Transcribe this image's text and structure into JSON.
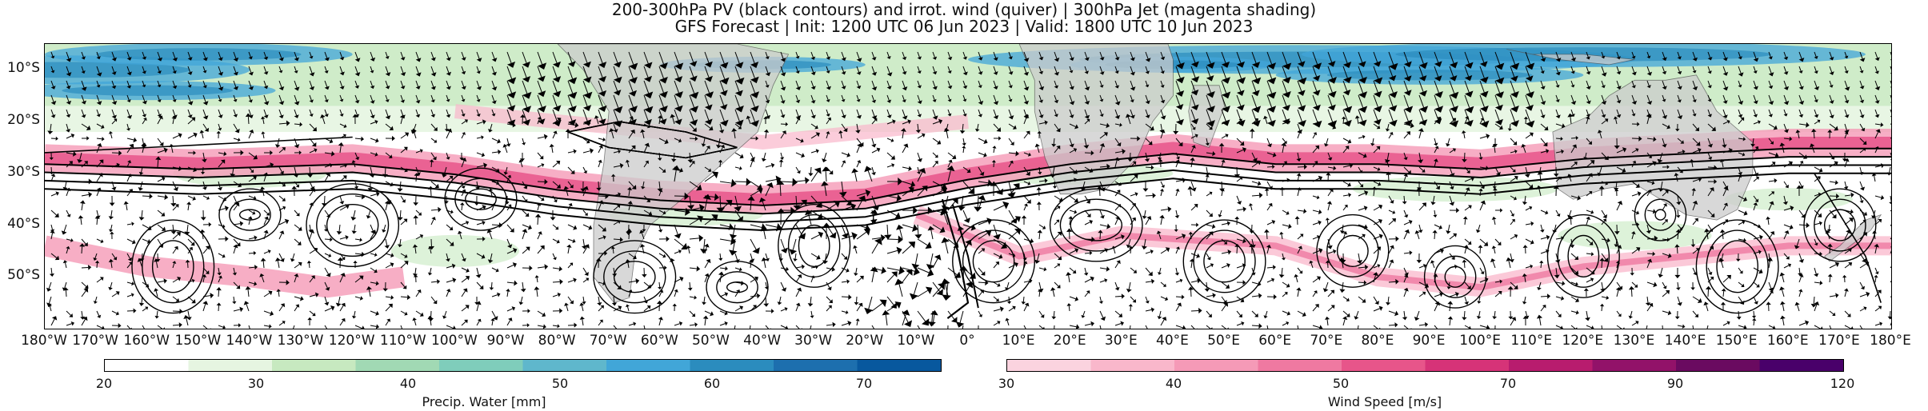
{
  "title": {
    "line1": "200-300hPa PV (black contours) and irrot. wind (quiver) | 300hPa Jet (magenta shading)",
    "line2": "GFS Forecast | Init: 1200 UTC 06 Jun 2023 | Valid: 1800 UTC 10 Jun 2023"
  },
  "map": {
    "projection": "PlateCarree",
    "extent_lon": [
      -180,
      180
    ],
    "extent_lat": [
      -60,
      -5
    ],
    "y_ticks": [
      "10°S",
      "20°S",
      "30°S",
      "40°S",
      "50°S"
    ],
    "y_tick_values": [
      -10,
      -20,
      -30,
      -40,
      -50
    ],
    "x_ticks": [
      "180°W",
      "170°W",
      "160°W",
      "150°W",
      "140°W",
      "130°W",
      "120°W",
      "110°W",
      "100°W",
      "90°W",
      "80°W",
      "70°W",
      "60°W",
      "50°W",
      "40°W",
      "30°W",
      "20°W",
      "10°W",
      "0°",
      "10°E",
      "20°E",
      "30°E",
      "40°E",
      "50°E",
      "60°E",
      "70°E",
      "80°E",
      "90°E",
      "100°E",
      "110°E",
      "120°E",
      "130°E",
      "140°E",
      "150°E",
      "160°E",
      "170°E",
      "180°E"
    ],
    "x_tick_values": [
      -180,
      -170,
      -160,
      -150,
      -140,
      -130,
      -120,
      -110,
      -100,
      -90,
      -80,
      -70,
      -60,
      -50,
      -40,
      -30,
      -20,
      -10,
      0,
      10,
      20,
      30,
      40,
      50,
      60,
      70,
      80,
      90,
      100,
      110,
      120,
      130,
      140,
      150,
      160,
      170,
      180
    ],
    "land_color": "#cccccc",
    "contour_color": "#000000"
  },
  "colorbars": [
    {
      "label": "Precip. Water [mm]",
      "ticks": [
        "20",
        "30",
        "40",
        "50",
        "60",
        "70"
      ],
      "tick_values": [
        20,
        30,
        40,
        50,
        60,
        70
      ],
      "range": [
        20,
        75
      ],
      "colors": [
        "#ffffff",
        "#e6f5e1",
        "#c7e9c0",
        "#a1d9b4",
        "#7fcdbb",
        "#5fb7cc",
        "#41a6d8",
        "#2b8cbe",
        "#1d6fae",
        "#08589e"
      ]
    },
    {
      "label": "Wind Speed [m/s]",
      "ticks": [
        "30",
        "40",
        "50",
        "70",
        "90",
        "120"
      ],
      "tick_values": [
        30,
        40,
        50,
        70,
        90,
        120
      ],
      "range": [
        30,
        120
      ],
      "colors": [
        "#fbd3df",
        "#f9b7cb",
        "#f59ab7",
        "#ef79a1",
        "#e7558a",
        "#d63378",
        "#b81c6e",
        "#921269",
        "#6a0a60",
        "#49006a"
      ]
    }
  ]
}
